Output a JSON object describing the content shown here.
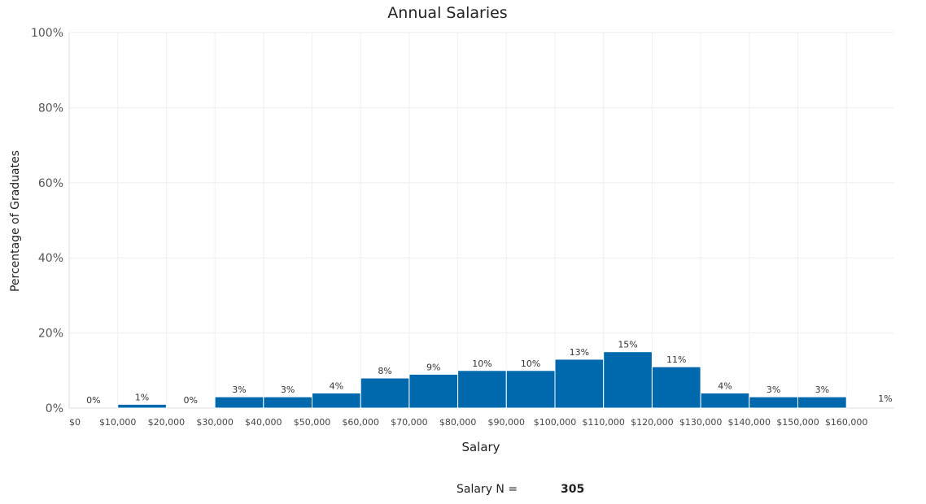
{
  "chart_data": {
    "type": "bar",
    "title": "Annual Salaries",
    "xlabel": "Salary",
    "ylabel": "Percentage of Graduates",
    "ylim": [
      0,
      100
    ],
    "y_ticks": [
      "0%",
      "20%",
      "40%",
      "60%",
      "80%",
      "100%"
    ],
    "x_ticks": [
      "$0",
      "$10,000",
      "$20,000",
      "$30,000",
      "$40,000",
      "$50,000",
      "$60,000",
      "$70,000",
      "$80,000",
      "$90,000",
      "$100,000",
      "$110,000",
      "$120,000",
      "$130,000",
      "$140,000",
      "$150,000",
      "$160,000"
    ],
    "values": [
      0,
      1,
      0,
      3,
      3,
      4,
      8,
      9,
      10,
      10,
      13,
      15,
      11,
      4,
      3,
      3,
      1
    ],
    "bar_labels": [
      "0%",
      "1%",
      "0%",
      "3%",
      "3%",
      "4%",
      "8%",
      "9%",
      "10%",
      "10%",
      "13%",
      "15%",
      "11%",
      "4%",
      "3%",
      "3%",
      "1%"
    ],
    "bar_color": "#0068ac",
    "grid": true,
    "legend": "none"
  },
  "footer": {
    "label": "Salary N  =",
    "value": "305"
  }
}
